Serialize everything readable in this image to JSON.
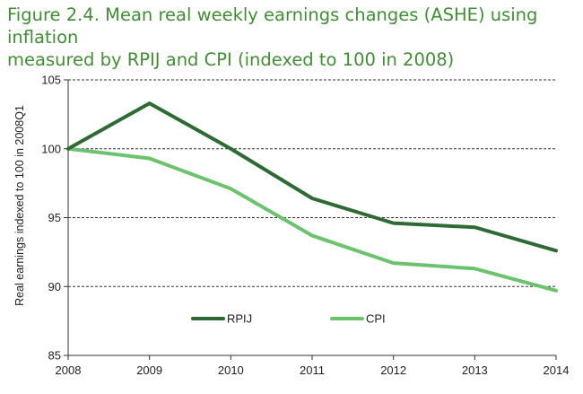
{
  "figure": {
    "title_line1": "Figure 2.4. Mean real weekly earnings changes (ASHE) using inflation",
    "title_line2": "measured by RPIJ and CPI (indexed to 100 in 2008)"
  },
  "chart_data": {
    "type": "line",
    "title": "Figure 2.4. Mean real weekly earnings changes (ASHE) using inflation measured by RPIJ and CPI (indexed to 100 in 2008)",
    "xlabel": "",
    "ylabel": "Real earnings indexed to 100 in 2008Q1",
    "x": [
      "2008",
      "2009",
      "2010",
      "2011",
      "2012",
      "2013",
      "2014"
    ],
    "ylim": [
      85,
      105
    ],
    "yticks": [
      "85",
      "90",
      "95",
      "100",
      "105"
    ],
    "grid": "horizontal dashed",
    "legend_position": "bottom-center",
    "series": [
      {
        "name": "RPIJ",
        "color": "#2e6b34",
        "values": [
          100,
          103.3,
          100.0,
          96.4,
          94.6,
          94.3,
          92.6
        ]
      },
      {
        "name": "CPI",
        "color": "#6cc36e",
        "values": [
          100,
          99.3,
          97.1,
          93.7,
          91.7,
          91.3,
          89.7
        ]
      }
    ]
  }
}
